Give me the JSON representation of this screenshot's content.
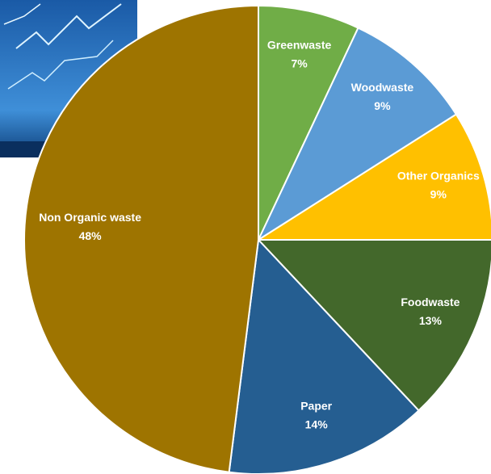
{
  "chart_data": {
    "type": "pie",
    "categories": [
      "Greenwaste",
      "Woodwaste",
      "Other Organics",
      "Foodwaste",
      "Paper",
      "Non Organic waste"
    ],
    "values": [
      7,
      9,
      9,
      13,
      14,
      48
    ],
    "value_labels": [
      "7%",
      "9%",
      "9%",
      "13%",
      "14%",
      "48%"
    ],
    "colors": [
      "#70ad47",
      "#5b9bd5",
      "#ffc000",
      "#43682b",
      "#255e91",
      "#9e7400"
    ]
  }
}
